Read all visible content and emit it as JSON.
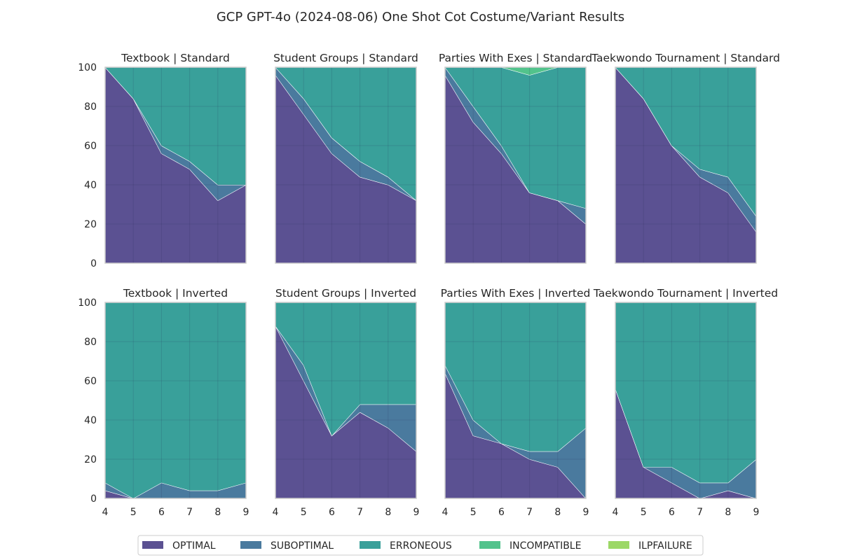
{
  "chart_data": {
    "type": "area",
    "stacked": true,
    "title": "GCP GPT-4o (2024-08-06) One Shot Cot Costume/Variant Results",
    "x": [
      4,
      5,
      6,
      7,
      8,
      9
    ],
    "ylim": [
      0,
      100
    ],
    "yticks": [
      0,
      20,
      40,
      60,
      80,
      100
    ],
    "grid": true,
    "legend_position": "bottom-center",
    "categories": [
      "OPTIMAL",
      "SUBOPTIMAL",
      "ERRONEOUS",
      "INCOMPATIBLE",
      "ILPFAILURE"
    ],
    "colors": {
      "OPTIMAL": "#5b5192",
      "SUBOPTIMAL": "#4a7a9e",
      "ERRONEOUS": "#39a09a",
      "INCOMPATIBLE": "#52c38c",
      "ILPFAILURE": "#9cd866"
    },
    "panels": [
      {
        "title": "Textbook | Standard",
        "series": [
          {
            "name": "OPTIMAL",
            "values": [
              100,
              84,
              56,
              48,
              32,
              40
            ]
          },
          {
            "name": "SUBOPTIMAL",
            "values": [
              0,
              0,
              4,
              4,
              8,
              0
            ]
          },
          {
            "name": "ERRONEOUS",
            "values": [
              0,
              16,
              40,
              48,
              60,
              60
            ]
          },
          {
            "name": "INCOMPATIBLE",
            "values": [
              0,
              0,
              0,
              0,
              0,
              0
            ]
          },
          {
            "name": "ILPFAILURE",
            "values": [
              0,
              0,
              0,
              0,
              0,
              0
            ]
          }
        ]
      },
      {
        "title": "Student Groups | Standard",
        "series": [
          {
            "name": "OPTIMAL",
            "values": [
              96,
              76,
              56,
              44,
              40,
              32
            ]
          },
          {
            "name": "SUBOPTIMAL",
            "values": [
              4,
              8,
              8,
              8,
              4,
              0
            ]
          },
          {
            "name": "ERRONEOUS",
            "values": [
              0,
              16,
              36,
              48,
              56,
              68
            ]
          },
          {
            "name": "INCOMPATIBLE",
            "values": [
              0,
              0,
              0,
              0,
              0,
              0
            ]
          },
          {
            "name": "ILPFAILURE",
            "values": [
              0,
              0,
              0,
              0,
              0,
              0
            ]
          }
        ]
      },
      {
        "title": "Parties With Exes | Standard",
        "series": [
          {
            "name": "OPTIMAL",
            "values": [
              96,
              72,
              56,
              36,
              32,
              20
            ]
          },
          {
            "name": "SUBOPTIMAL",
            "values": [
              4,
              8,
              4,
              0,
              0,
              8
            ]
          },
          {
            "name": "ERRONEOUS",
            "values": [
              0,
              20,
              40,
              60,
              68,
              72
            ]
          },
          {
            "name": "INCOMPATIBLE",
            "values": [
              0,
              0,
              0,
              4,
              0,
              0
            ]
          },
          {
            "name": "ILPFAILURE",
            "values": [
              0,
              0,
              0,
              0,
              0,
              0
            ]
          }
        ]
      },
      {
        "title": "Taekwondo Tournament | Standard",
        "series": [
          {
            "name": "OPTIMAL",
            "values": [
              100,
              84,
              60,
              44,
              36,
              16
            ]
          },
          {
            "name": "SUBOPTIMAL",
            "values": [
              0,
              0,
              0,
              4,
              8,
              8
            ]
          },
          {
            "name": "ERRONEOUS",
            "values": [
              0,
              16,
              40,
              52,
              56,
              76
            ]
          },
          {
            "name": "INCOMPATIBLE",
            "values": [
              0,
              0,
              0,
              0,
              0,
              0
            ]
          },
          {
            "name": "ILPFAILURE",
            "values": [
              0,
              0,
              0,
              0,
              0,
              0
            ]
          }
        ]
      },
      {
        "title": "Textbook | Inverted",
        "series": [
          {
            "name": "OPTIMAL",
            "values": [
              4,
              0,
              0,
              0,
              0,
              0
            ]
          },
          {
            "name": "SUBOPTIMAL",
            "values": [
              4,
              0,
              8,
              4,
              4,
              8
            ]
          },
          {
            "name": "ERRONEOUS",
            "values": [
              92,
              100,
              92,
              96,
              96,
              92
            ]
          },
          {
            "name": "INCOMPATIBLE",
            "values": [
              0,
              0,
              0,
              0,
              0,
              0
            ]
          },
          {
            "name": "ILPFAILURE",
            "values": [
              0,
              0,
              0,
              0,
              0,
              0
            ]
          }
        ]
      },
      {
        "title": "Student Groups | Inverted",
        "series": [
          {
            "name": "OPTIMAL",
            "values": [
              88,
              60,
              32,
              44,
              36,
              24
            ]
          },
          {
            "name": "SUBOPTIMAL",
            "values": [
              0,
              8,
              0,
              4,
              12,
              24
            ]
          },
          {
            "name": "ERRONEOUS",
            "values": [
              12,
              32,
              68,
              52,
              52,
              52
            ]
          },
          {
            "name": "INCOMPATIBLE",
            "values": [
              0,
              0,
              0,
              0,
              0,
              0
            ]
          },
          {
            "name": "ILPFAILURE",
            "values": [
              0,
              0,
              0,
              0,
              0,
              0
            ]
          }
        ]
      },
      {
        "title": "Parties With Exes | Inverted",
        "series": [
          {
            "name": "OPTIMAL",
            "values": [
              64,
              32,
              28,
              20,
              16,
              0
            ]
          },
          {
            "name": "SUBOPTIMAL",
            "values": [
              4,
              8,
              0,
              4,
              8,
              36
            ]
          },
          {
            "name": "ERRONEOUS",
            "values": [
              32,
              60,
              72,
              76,
              76,
              64
            ]
          },
          {
            "name": "INCOMPATIBLE",
            "values": [
              0,
              0,
              0,
              0,
              0,
              0
            ]
          },
          {
            "name": "ILPFAILURE",
            "values": [
              0,
              0,
              0,
              0,
              0,
              0
            ]
          }
        ]
      },
      {
        "title": "Taekwondo Tournament | Inverted",
        "series": [
          {
            "name": "OPTIMAL",
            "values": [
              56,
              16,
              8,
              0,
              4,
              0
            ]
          },
          {
            "name": "SUBOPTIMAL",
            "values": [
              0,
              0,
              8,
              8,
              4,
              20
            ]
          },
          {
            "name": "ERRONEOUS",
            "values": [
              44,
              84,
              84,
              92,
              92,
              80
            ]
          },
          {
            "name": "INCOMPATIBLE",
            "values": [
              0,
              0,
              0,
              0,
              0,
              0
            ]
          },
          {
            "name": "ILPFAILURE",
            "values": [
              0,
              0,
              0,
              0,
              0,
              0
            ]
          }
        ]
      }
    ]
  }
}
